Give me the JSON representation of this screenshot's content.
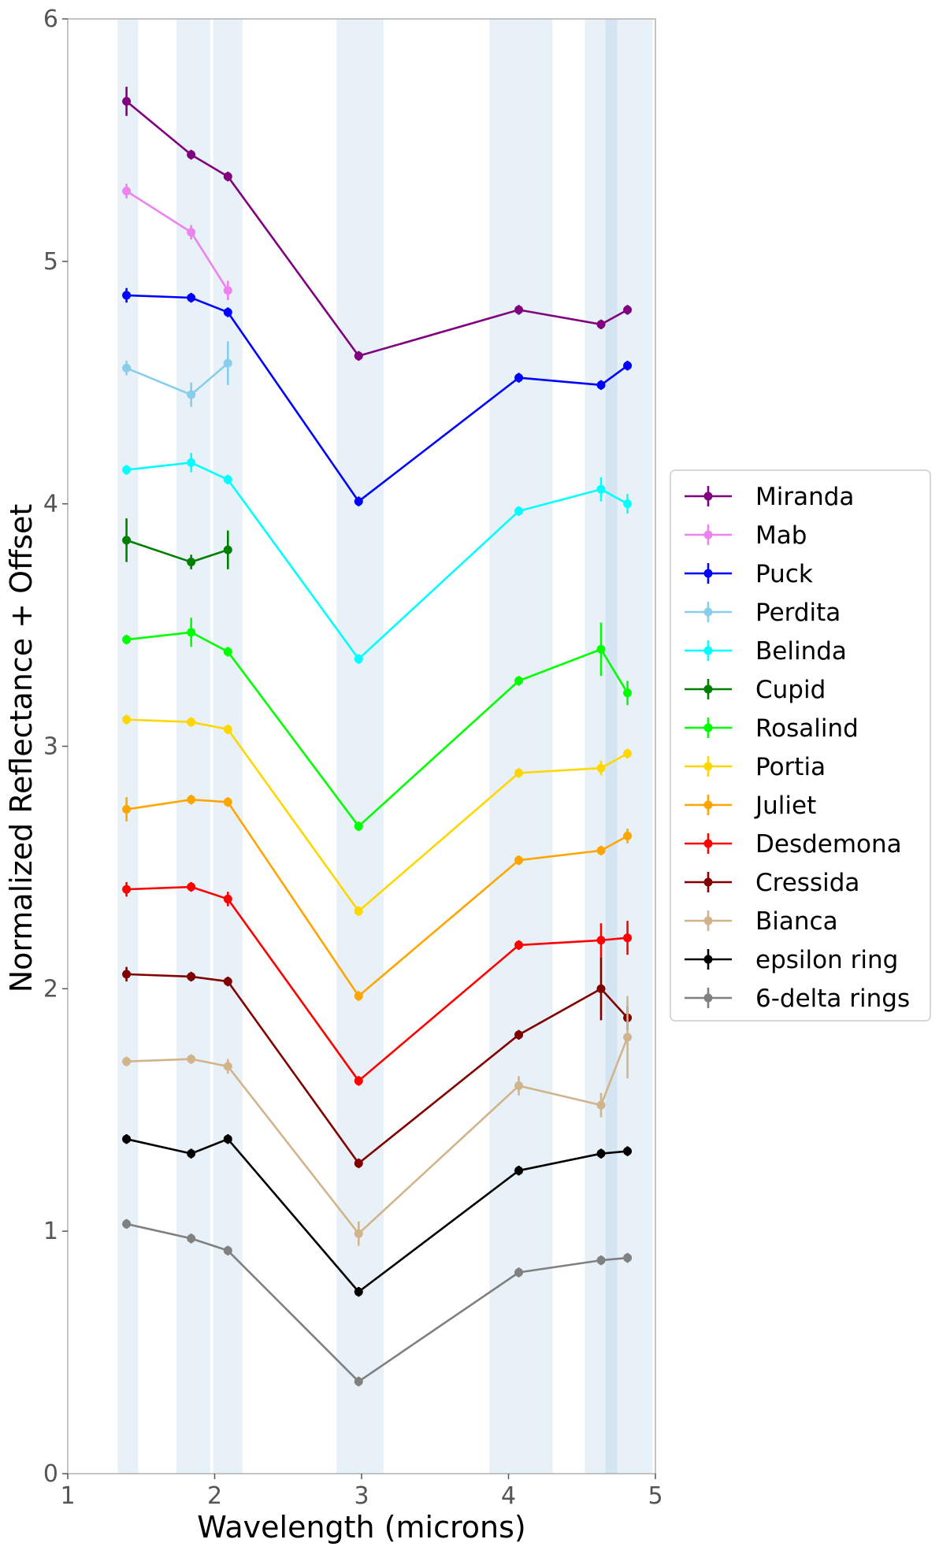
{
  "chart_data": {
    "type": "line",
    "title": "",
    "xlabel": "Wavelength (microns)",
    "ylabel": "Normalized Reflectance + Offset",
    "xlim": [
      1,
      5
    ],
    "ylim": [
      0,
      6
    ],
    "xticks": [
      "1",
      "2",
      "3",
      "4",
      "5"
    ],
    "yticks": [
      "0",
      "1",
      "2",
      "3",
      "4",
      "5",
      "6"
    ],
    "grid": false,
    "legend_position": "right",
    "shaded_bands": [
      {
        "x0": 1.34,
        "x1": 1.48
      },
      {
        "x0": 1.74,
        "x1": 1.97
      },
      {
        "x0": 1.99,
        "x1": 2.19
      },
      {
        "x0": 2.83,
        "x1": 3.15
      },
      {
        "x0": 3.87,
        "x1": 4.3
      },
      {
        "x0": 4.52,
        "x1": 4.74
      },
      {
        "x0": 4.66,
        "x1": 4.98
      }
    ],
    "series": [
      {
        "name": "Miranda",
        "color": "#800080",
        "x": [
          1.4,
          1.84,
          2.09,
          2.98,
          4.07,
          4.63,
          4.81
        ],
        "y": [
          5.66,
          5.44,
          5.35,
          4.61,
          4.8,
          4.74,
          4.8
        ],
        "err": [
          0.06,
          0.02,
          0.02,
          0.02,
          0.02,
          0.02,
          0.02
        ]
      },
      {
        "name": "Mab",
        "color": "#ee82ee",
        "x": [
          1.4,
          1.84,
          2.09
        ],
        "y": [
          5.29,
          5.12,
          4.88
        ],
        "err": [
          0.03,
          0.03,
          0.04
        ]
      },
      {
        "name": "Puck",
        "color": "#0000ff",
        "x": [
          1.4,
          1.84,
          2.09,
          2.98,
          4.07,
          4.63,
          4.81
        ],
        "y": [
          4.86,
          4.85,
          4.79,
          4.01,
          4.52,
          4.49,
          4.57
        ],
        "err": [
          0.03,
          0.02,
          0.02,
          0.02,
          0.02,
          0.02,
          0.02
        ]
      },
      {
        "name": "Perdita",
        "color": "#87ceeb",
        "x": [
          1.4,
          1.84,
          2.09
        ],
        "y": [
          4.56,
          4.45,
          4.58
        ],
        "err": [
          0.03,
          0.05,
          0.09
        ]
      },
      {
        "name": "Belinda",
        "color": "#00ffff",
        "x": [
          1.4,
          1.84,
          2.09,
          2.98,
          4.07,
          4.63,
          4.81
        ],
        "y": [
          4.14,
          4.17,
          4.1,
          3.36,
          3.97,
          4.06,
          4.0
        ],
        "err": [
          0.02,
          0.04,
          0.02,
          0.02,
          0.02,
          0.05,
          0.04
        ]
      },
      {
        "name": "Cupid",
        "color": "#008000",
        "x": [
          1.4,
          1.84,
          2.09
        ],
        "y": [
          3.85,
          3.76,
          3.81
        ],
        "err": [
          0.09,
          0.03,
          0.08
        ]
      },
      {
        "name": "Rosalind",
        "color": "#00ff00",
        "x": [
          1.4,
          1.84,
          2.09,
          2.98,
          4.07,
          4.63,
          4.81
        ],
        "y": [
          3.44,
          3.47,
          3.39,
          2.67,
          3.27,
          3.4,
          3.22
        ],
        "err": [
          0.02,
          0.06,
          0.02,
          0.02,
          0.02,
          0.11,
          0.05
        ]
      },
      {
        "name": "Portia",
        "color": "#ffd700",
        "x": [
          1.4,
          1.84,
          2.09,
          2.98,
          4.07,
          4.63,
          4.81
        ],
        "y": [
          3.11,
          3.1,
          3.07,
          2.32,
          2.89,
          2.91,
          2.97
        ],
        "err": [
          0.02,
          0.02,
          0.02,
          0.02,
          0.02,
          0.03,
          0.02
        ]
      },
      {
        "name": "Juliet",
        "color": "#ffa500",
        "x": [
          1.4,
          1.84,
          2.09,
          2.98,
          4.07,
          4.63,
          4.81
        ],
        "y": [
          2.74,
          2.78,
          2.77,
          1.97,
          2.53,
          2.57,
          2.63
        ],
        "err": [
          0.05,
          0.02,
          0.02,
          0.02,
          0.02,
          0.02,
          0.03
        ]
      },
      {
        "name": "Desdemona",
        "color": "#ff0000",
        "x": [
          1.4,
          1.84,
          2.09,
          2.98,
          4.07,
          4.63,
          4.81
        ],
        "y": [
          2.41,
          2.42,
          2.37,
          1.62,
          2.18,
          2.2,
          2.21
        ],
        "err": [
          0.03,
          0.02,
          0.03,
          0.02,
          0.02,
          0.07,
          0.07
        ]
      },
      {
        "name": "Cressida",
        "color": "#800000",
        "x": [
          1.4,
          1.84,
          2.09,
          2.98,
          4.07,
          4.63,
          4.81
        ],
        "y": [
          2.06,
          2.05,
          2.03,
          1.28,
          1.81,
          2.0,
          1.88
        ],
        "err": [
          0.03,
          0.02,
          0.02,
          0.02,
          0.02,
          0.13,
          0.05
        ]
      },
      {
        "name": "Bianca",
        "color": "#d2b48c",
        "x": [
          1.4,
          1.84,
          2.09,
          2.98,
          4.07,
          4.63,
          4.81
        ],
        "y": [
          1.7,
          1.71,
          1.68,
          0.99,
          1.6,
          1.52,
          1.8
        ],
        "err": [
          0.02,
          0.02,
          0.03,
          0.05,
          0.04,
          0.05,
          0.17
        ]
      },
      {
        "name": "epsilon ring",
        "color": "#000000",
        "x": [
          1.4,
          1.84,
          2.09,
          2.98,
          4.07,
          4.63,
          4.81
        ],
        "y": [
          1.38,
          1.32,
          1.38,
          0.75,
          1.25,
          1.32,
          1.33
        ],
        "err": [
          0.02,
          0.02,
          0.02,
          0.02,
          0.02,
          0.02,
          0.02
        ]
      },
      {
        "name": "6-delta rings",
        "color": "#808080",
        "x": [
          1.4,
          1.84,
          2.09,
          2.98,
          4.07,
          4.63,
          4.81
        ],
        "y": [
          1.03,
          0.97,
          0.92,
          0.38,
          0.83,
          0.88,
          0.89
        ],
        "err": [
          0.02,
          0.02,
          0.02,
          0.02,
          0.02,
          0.02,
          0.02
        ]
      }
    ]
  }
}
